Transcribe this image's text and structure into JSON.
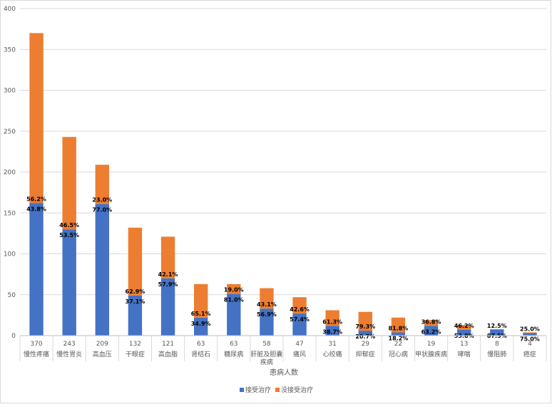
{
  "chart_data": {
    "type": "bar",
    "stacked": true,
    "title": "",
    "xlabel": "患病人数",
    "ylabel": "",
    "ylim": [
      0,
      400
    ],
    "yticks": [
      0,
      50,
      100,
      150,
      200,
      250,
      300,
      350,
      400
    ],
    "grid": true,
    "legend_position": "bottom",
    "categories": [
      {
        "count": "370",
        "name": [
          "慢性疼痛"
        ]
      },
      {
        "count": "243",
        "name": [
          "慢性胃炎"
        ]
      },
      {
        "count": "209",
        "name": [
          "高血压"
        ]
      },
      {
        "count": "132",
        "name": [
          "干眼症"
        ]
      },
      {
        "count": "121",
        "name": [
          "高血脂"
        ]
      },
      {
        "count": "63",
        "name": [
          "肾结石"
        ]
      },
      {
        "count": "63",
        "name": [
          "糖尿病"
        ]
      },
      {
        "count": "58",
        "name": [
          "肝脏及胆囊",
          "疾病"
        ]
      },
      {
        "count": "47",
        "name": [
          "痛风"
        ]
      },
      {
        "count": "31",
        "name": [
          "心绞痛"
        ]
      },
      {
        "count": "29",
        "name": [
          "抑郁症"
        ]
      },
      {
        "count": "22",
        "name": [
          "冠心病"
        ]
      },
      {
        "count": "19",
        "name": [
          "甲状腺疾病"
        ]
      },
      {
        "count": "13",
        "name": [
          "哮喘"
        ]
      },
      {
        "count": "8",
        "name": [
          "慢阻肺"
        ]
      },
      {
        "count": "4",
        "name": [
          "癌症"
        ]
      }
    ],
    "series": [
      {
        "name": "接受治疗",
        "color": "#4472C4",
        "values": [
          162,
          130,
          161,
          49,
          70,
          22,
          51,
          33,
          27,
          12,
          6,
          4,
          12,
          7,
          7,
          3
        ],
        "labels": [
          "43.8%",
          "53.5%",
          "77.0%",
          "37.1%",
          "57.9%",
          "34.9%",
          "81.0%",
          "56.9%",
          "57.4%",
          "38.7%",
          "20.7%",
          "18.2%",
          "63.2%",
          "53.8%",
          "87.5%",
          "75.0%"
        ]
      },
      {
        "name": "没接受治疗",
        "color": "#ED7D31",
        "values": [
          208,
          113,
          48,
          83,
          51,
          41,
          12,
          25,
          20,
          19,
          23,
          18,
          7,
          6,
          1,
          1
        ],
        "labels": [
          "56.2%",
          "46.5%",
          "23.0%",
          "62.9%",
          "42.1%",
          "65.1%",
          "19.0%",
          "43.1%",
          "42.6%",
          "61.3%",
          "79.3%",
          "81.8%",
          "36.8%",
          "46.2%",
          "12.5%",
          "25.0%"
        ]
      }
    ]
  }
}
